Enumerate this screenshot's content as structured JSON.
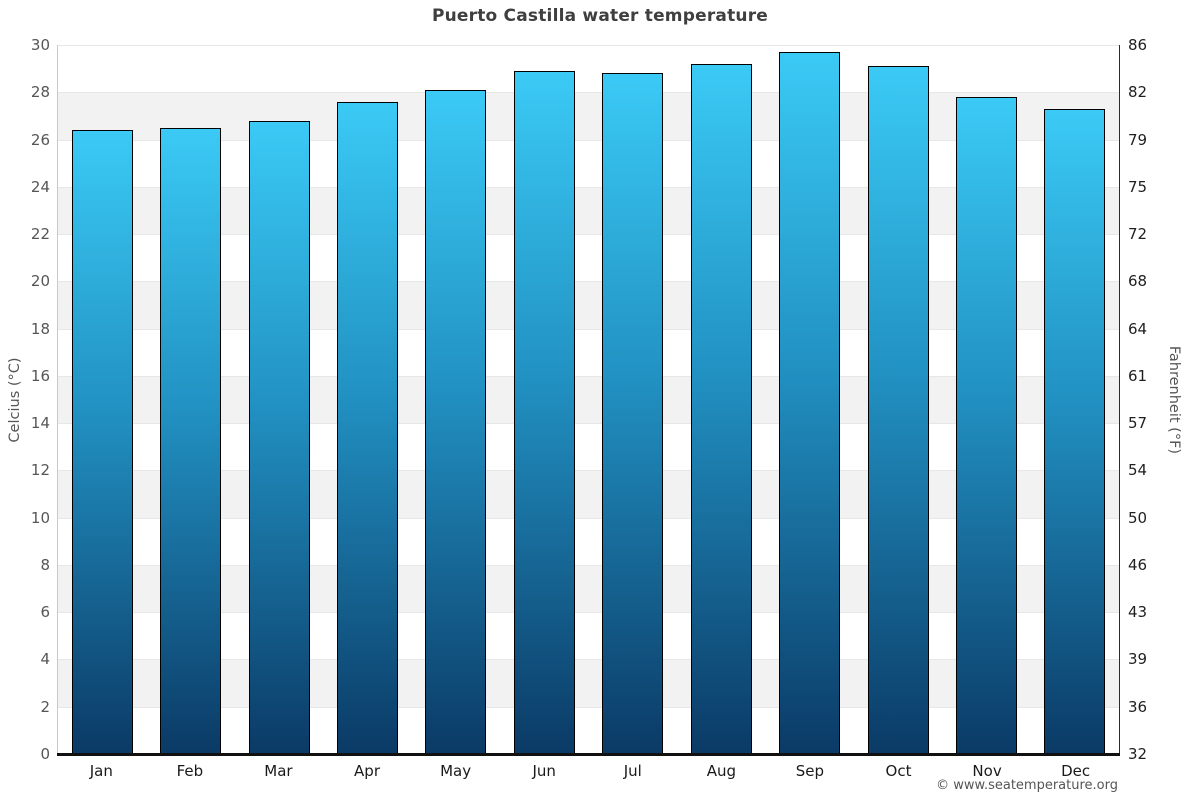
{
  "chart_data": {
    "type": "bar",
    "title": "Puerto Castilla water temperature",
    "categories": [
      "Jan",
      "Feb",
      "Mar",
      "Apr",
      "May",
      "Jun",
      "Jul",
      "Aug",
      "Sep",
      "Oct",
      "Nov",
      "Dec"
    ],
    "values": [
      26.4,
      26.5,
      26.8,
      27.6,
      28.1,
      28.9,
      28.8,
      29.2,
      29.7,
      29.1,
      27.8,
      27.3
    ],
    "unit": "°C",
    "ylabel_left": "Celcius (°C)",
    "ylabel_right": "Fahrenheit (°F)",
    "ylim": [
      0,
      30
    ],
    "yticks_left_top_to_bottom": [
      30,
      28,
      26,
      24,
      22,
      20,
      18,
      16,
      14,
      12,
      10,
      8,
      6,
      4,
      2,
      0
    ],
    "yticks_right_top_to_bottom": [
      86,
      82,
      79,
      75,
      72,
      68,
      64,
      61,
      57,
      54,
      50,
      46,
      43,
      39,
      36,
      32
    ],
    "grid": "alternating-horizontal-bands",
    "legend": "none",
    "colors": {
      "band_gray": "#f2f2f2",
      "band_white": "#ffffff",
      "gridline": "#e7e7e7",
      "bar_gradient_top": "#3bcaf5",
      "bar_gradient_mid": "#2191c2",
      "bar_gradient_bottom": "#0b3a66",
      "bar_border": "#000000",
      "baseline": "#111111",
      "title_text": "#3f3f3f"
    }
  },
  "footer": {
    "copyright": "© www.seatemperature.org"
  }
}
